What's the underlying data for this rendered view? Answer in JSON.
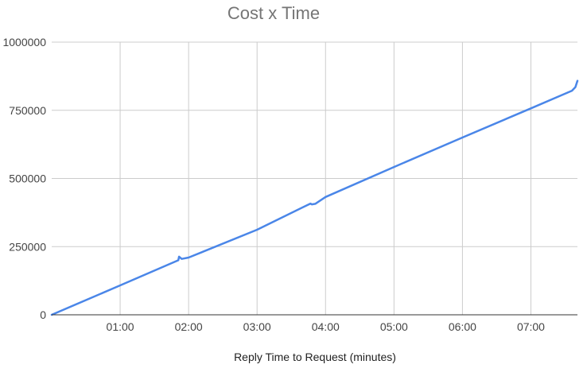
{
  "chart_data": {
    "type": "line",
    "title": "Cost x Time",
    "xlabel": "Reply Time to Request (minutes)",
    "ylabel": "",
    "x_unit": "minutes",
    "xlim": [
      0,
      7.68
    ],
    "ylim": [
      0,
      1000000
    ],
    "x_ticks": [
      1,
      2,
      3,
      4,
      5,
      6,
      7
    ],
    "x_tick_labels": [
      "01:00",
      "02:00",
      "03:00",
      "04:00",
      "05:00",
      "06:00",
      "07:00"
    ],
    "y_ticks": [
      0,
      250000,
      500000,
      750000,
      1000000
    ],
    "y_tick_labels": [
      "0",
      "250000",
      "500000",
      "750000",
      "1000000"
    ],
    "grid": true,
    "legend": "none",
    "series": [
      {
        "color": "#4a86e8",
        "x": [
          0,
          1.0,
          1.85,
          1.86,
          1.9,
          2.0,
          3.0,
          3.78,
          3.8,
          3.85,
          4.0,
          5.0,
          6.0,
          7.0,
          7.6,
          7.65,
          7.68
        ],
        "y": [
          0,
          108000,
          200000,
          213000,
          205000,
          210000,
          312000,
          408000,
          405000,
          407000,
          432000,
          542000,
          650000,
          757000,
          822000,
          835000,
          858000
        ]
      }
    ]
  }
}
